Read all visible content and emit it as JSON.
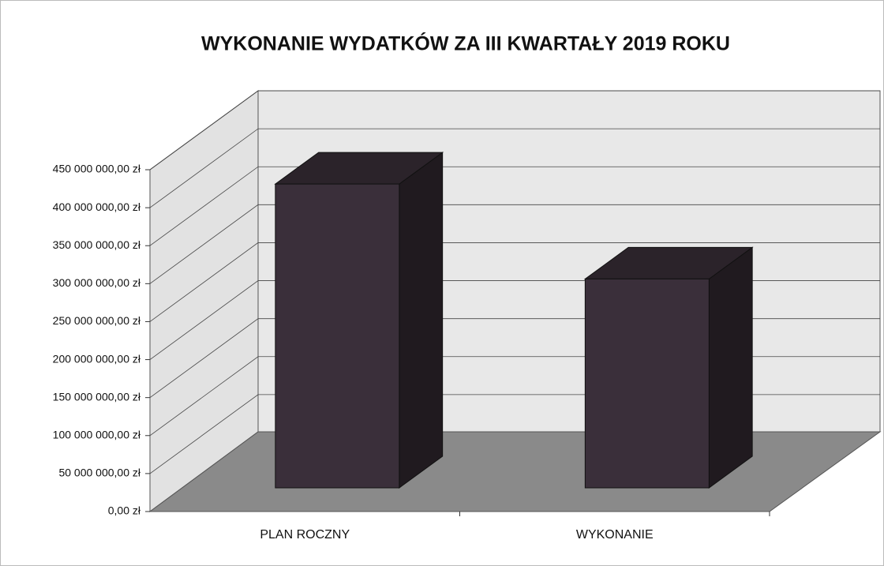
{
  "chart_data": {
    "type": "bar3d",
    "title": "WYKONANIE WYDATKÓW ZA III KWARTAŁY 2019 ROKU",
    "categories": [
      "PLAN ROCZNY",
      "WYKONANIE"
    ],
    "values": [
      400000000,
      275000000
    ],
    "color": "#3a2f3a",
    "ylim": [
      0,
      450000000
    ],
    "yticks": [
      {
        "value": 0,
        "label": "0,00 zł"
      },
      {
        "value": 50000000,
        "label": "50 000 000,00 zł"
      },
      {
        "value": 100000000,
        "label": "100 000 000,00 zł"
      },
      {
        "value": 150000000,
        "label": "150 000 000,00 zł"
      },
      {
        "value": 200000000,
        "label": "200 000 000,00 zł"
      },
      {
        "value": 250000000,
        "label": "250 000 000,00 zł"
      },
      {
        "value": 300000000,
        "label": "300 000 000,00 zł"
      },
      {
        "value": 350000000,
        "label": "350 000 000,00 zł"
      },
      {
        "value": 400000000,
        "label": "400 000 000,00 zł"
      },
      {
        "value": 450000000,
        "label": "450 000 000,00 zł"
      }
    ],
    "grid": true
  }
}
